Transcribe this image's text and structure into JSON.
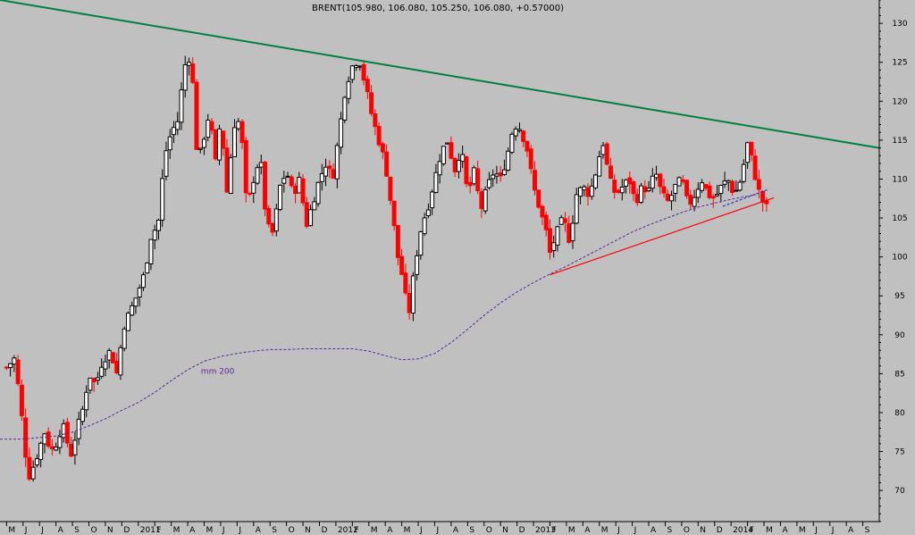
{
  "chart_data": {
    "type": "candlestick",
    "title": "BRENT(105.980, 106.080, 105.250, 106.080, +0.57000)",
    "y_ticks": [
      70,
      75,
      80,
      85,
      90,
      95,
      100,
      105,
      110,
      115,
      120,
      125,
      130
    ],
    "ylim": [
      66,
      133
    ],
    "x_tick_labels": [
      "M",
      "J",
      "J",
      "A",
      "S",
      "O",
      "N",
      "D",
      "2011",
      "F",
      "M",
      "A",
      "M",
      "J",
      "J",
      "A",
      "S",
      "O",
      "N",
      "D",
      "2012",
      "F",
      "M",
      "A",
      "M",
      "J",
      "J",
      "A",
      "S",
      "O",
      "N",
      "D",
      "2013",
      "F",
      "M",
      "A",
      "M",
      "J",
      "J",
      "A",
      "S",
      "O",
      "N",
      "D",
      "2014",
      "F",
      "M",
      "A",
      "M",
      "J",
      "J",
      "A",
      "S"
    ],
    "x_ticks_months_from_start": [
      0,
      1,
      2,
      3,
      4,
      5,
      6,
      7,
      8,
      9,
      10,
      11,
      12,
      13,
      14,
      15,
      16,
      17,
      18,
      19,
      20,
      21,
      22,
      23,
      24,
      25,
      26,
      27,
      28,
      29,
      30,
      31,
      32,
      33,
      34,
      35,
      36,
      37,
      38,
      39,
      40,
      41,
      42,
      43,
      44,
      45,
      46,
      47,
      48,
      49,
      50,
      51,
      52
    ],
    "x_range_months": [
      -0.4,
      53.0
    ],
    "weekly_close_anchors": [
      [
        0.0,
        85.8
      ],
      [
        0.5,
        87.0
      ],
      [
        1.0,
        78.0
      ],
      [
        1.3,
        71.5
      ],
      [
        1.7,
        73.5
      ],
      [
        2.3,
        77.5
      ],
      [
        2.7,
        75.0
      ],
      [
        3.0,
        76.0
      ],
      [
        3.4,
        78.5
      ],
      [
        3.9,
        74.5
      ],
      [
        4.3,
        78.0
      ],
      [
        4.7,
        81.0
      ],
      [
        5.0,
        85.0
      ],
      [
        5.4,
        83.5
      ],
      [
        5.8,
        86.5
      ],
      [
        6.3,
        88.0
      ],
      [
        6.7,
        85.0
      ],
      [
        7.1,
        91.0
      ],
      [
        7.5,
        93.0
      ],
      [
        7.9,
        95.0
      ],
      [
        8.4,
        98.0
      ],
      [
        8.8,
        103.0
      ],
      [
        9.2,
        104.0
      ],
      [
        9.6,
        113.0
      ],
      [
        10.0,
        116.0
      ],
      [
        10.4,
        117.5
      ],
      [
        10.8,
        124.5
      ],
      [
        11.2,
        126.0
      ],
      [
        11.6,
        112.0
      ],
      [
        11.9,
        114.5
      ],
      [
        12.3,
        118.5
      ],
      [
        12.7,
        112.0
      ],
      [
        13.0,
        118.0
      ],
      [
        13.4,
        108.0
      ],
      [
        13.8,
        117.0
      ],
      [
        14.2,
        117.5
      ],
      [
        14.6,
        106.0
      ],
      [
        15.0,
        110.0
      ],
      [
        15.4,
        113.0
      ],
      [
        15.8,
        104.0
      ],
      [
        16.2,
        103.0
      ],
      [
        16.6,
        109.0
      ],
      [
        17.0,
        111.0
      ],
      [
        17.4,
        108.0
      ],
      [
        17.8,
        110.0
      ],
      [
        18.2,
        104.0
      ],
      [
        18.6,
        107.0
      ],
      [
        19.0,
        110.0
      ],
      [
        19.4,
        112.0
      ],
      [
        19.8,
        110.0
      ],
      [
        20.2,
        116.0
      ],
      [
        20.6,
        122.0
      ],
      [
        21.0,
        124.5
      ],
      [
        21.4,
        125.5
      ],
      [
        21.8,
        122.0
      ],
      [
        22.2,
        118.0
      ],
      [
        22.6,
        115.0
      ],
      [
        23.0,
        112.0
      ],
      [
        23.4,
        106.0
      ],
      [
        23.8,
        99.5
      ],
      [
        24.1,
        97.0
      ],
      [
        24.4,
        92.0
      ],
      [
        24.8,
        99.0
      ],
      [
        25.2,
        104.0
      ],
      [
        25.6,
        106.5
      ],
      [
        26.0,
        110.0
      ],
      [
        26.4,
        113.5
      ],
      [
        26.8,
        115.0
      ],
      [
        27.2,
        111.0
      ],
      [
        27.6,
        114.0
      ],
      [
        28.0,
        108.0
      ],
      [
        28.4,
        111.0
      ],
      [
        28.8,
        106.0
      ],
      [
        29.2,
        109.0
      ],
      [
        29.6,
        111.0
      ],
      [
        30.0,
        110.0
      ],
      [
        30.4,
        113.0
      ],
      [
        30.8,
        117.0
      ],
      [
        31.2,
        116.5
      ],
      [
        31.6,
        114.0
      ],
      [
        32.0,
        109.0
      ],
      [
        32.4,
        106.0
      ],
      [
        32.8,
        103.0
      ],
      [
        33.0,
        100.5
      ],
      [
        33.4,
        103.0
      ],
      [
        33.8,
        105.0
      ],
      [
        34.2,
        102.0
      ],
      [
        34.6,
        108.0
      ],
      [
        35.0,
        109.0
      ],
      [
        35.4,
        108.0
      ],
      [
        35.8,
        111.0
      ],
      [
        36.2,
        115.0
      ],
      [
        36.6,
        110.0
      ],
      [
        37.0,
        108.0
      ],
      [
        37.4,
        109.0
      ],
      [
        37.8,
        110.0
      ],
      [
        38.2,
        107.0
      ],
      [
        38.6,
        109.0
      ],
      [
        39.0,
        108.5
      ],
      [
        39.4,
        111.0
      ],
      [
        39.8,
        108.0
      ],
      [
        40.2,
        107.0
      ],
      [
        40.6,
        109.0
      ],
      [
        41.0,
        110.0
      ],
      [
        41.4,
        106.5
      ],
      [
        41.8,
        108.0
      ],
      [
        42.2,
        110.0
      ],
      [
        42.6,
        108.0
      ],
      [
        43.0,
        107.5
      ],
      [
        43.4,
        109.0
      ],
      [
        43.8,
        110.0
      ],
      [
        44.2,
        108.0
      ],
      [
        44.6,
        110.0
      ],
      [
        45.0,
        114.5
      ],
      [
        45.2,
        113.0
      ],
      [
        45.5,
        110.0
      ],
      [
        45.8,
        107.5
      ],
      [
        46.1,
        106.5
      ],
      [
        46.3,
        106.08
      ]
    ],
    "series": [
      {
        "kind": "trendline",
        "color": "#008040",
        "points": [
          [
            -0.4,
            133.0
          ],
          [
            53.0,
            114.0
          ]
        ]
      },
      {
        "kind": "trendline",
        "color": "#ff0000",
        "points": [
          [
            33.0,
            97.7
          ],
          [
            46.6,
            107.6
          ]
        ]
      },
      {
        "kind": "trendline",
        "color": "#3030c0",
        "points": [
          [
            43.5,
            106.5
          ],
          [
            46.3,
            108.7
          ]
        ]
      },
      {
        "name": "mm 200",
        "kind": "moving_average",
        "color": "#5a2a9a",
        "points": [
          [
            -0.4,
            76.6
          ],
          [
            1.0,
            76.6
          ],
          [
            3.0,
            77.0
          ],
          [
            4.0,
            77.5
          ],
          [
            5.0,
            78.3
          ],
          [
            6.0,
            79.2
          ],
          [
            7.0,
            80.3
          ],
          [
            8.0,
            81.3
          ],
          [
            9.0,
            82.6
          ],
          [
            10.0,
            84.1
          ],
          [
            11.0,
            85.5
          ],
          [
            12.0,
            86.6
          ],
          [
            13.0,
            87.2
          ],
          [
            14.0,
            87.6
          ],
          [
            15.0,
            87.9
          ],
          [
            16.0,
            88.1
          ],
          [
            17.0,
            88.1
          ],
          [
            18.0,
            88.2
          ],
          [
            19.0,
            88.2
          ],
          [
            20.0,
            88.2
          ],
          [
            21.0,
            88.2
          ],
          [
            22.0,
            87.9
          ],
          [
            23.0,
            87.3
          ],
          [
            24.0,
            86.8
          ],
          [
            25.0,
            86.9
          ],
          [
            26.0,
            87.6
          ],
          [
            27.0,
            89.0
          ],
          [
            28.0,
            90.7
          ],
          [
            29.0,
            92.5
          ],
          [
            30.0,
            94.1
          ],
          [
            31.0,
            95.5
          ],
          [
            32.0,
            96.7
          ],
          [
            33.0,
            97.8
          ],
          [
            34.0,
            98.8
          ],
          [
            35.0,
            99.9
          ],
          [
            36.0,
            101.0
          ],
          [
            37.0,
            102.1
          ],
          [
            38.0,
            103.2
          ],
          [
            39.0,
            104.1
          ],
          [
            40.0,
            104.9
          ],
          [
            41.0,
            105.7
          ],
          [
            42.0,
            106.4
          ],
          [
            43.0,
            106.9
          ],
          [
            44.0,
            107.4
          ],
          [
            45.0,
            107.8
          ],
          [
            45.5,
            108.0
          ]
        ]
      }
    ],
    "annotations": [
      {
        "text": "mm 200",
        "x_month": 11.8,
        "y": 85.0
      }
    ],
    "grid": false,
    "legend": "none"
  }
}
